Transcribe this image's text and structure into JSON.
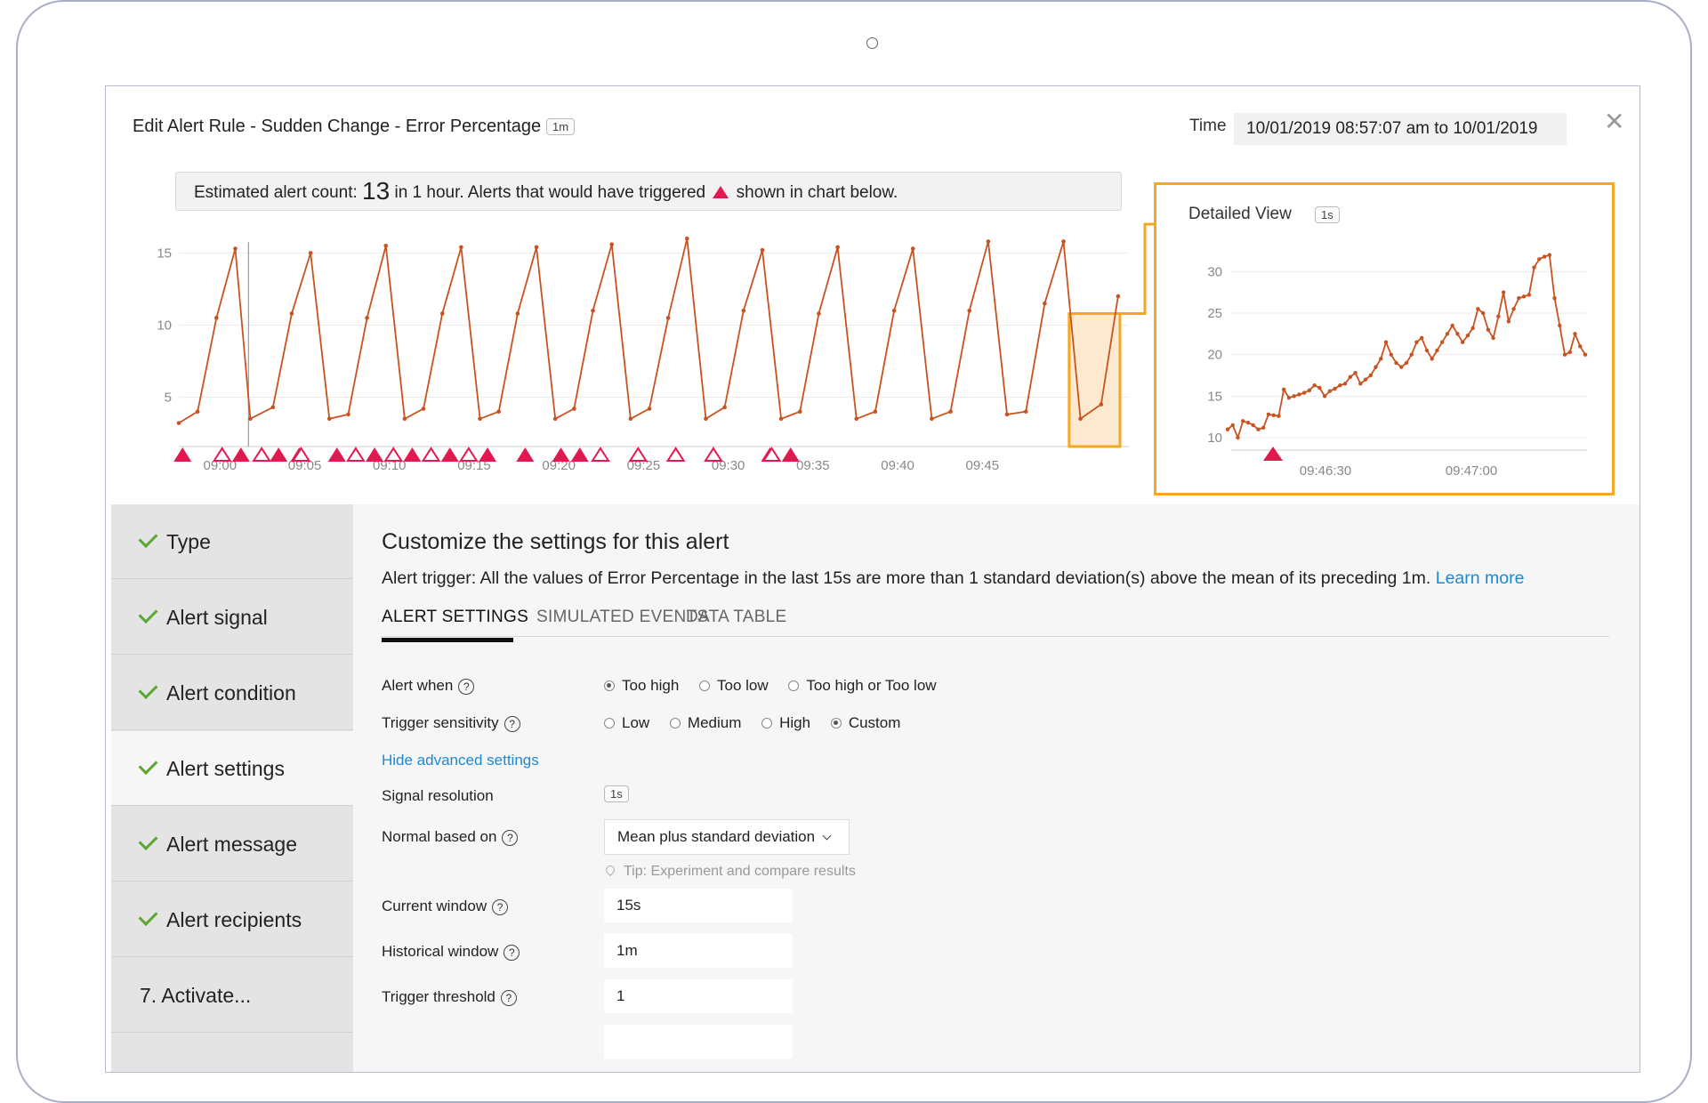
{
  "header": {
    "title": "Edit Alert Rule - Sudden Change - Error Percentage",
    "resolution_badge": "1m",
    "time_label": "Time",
    "time_value": "10/01/2019 08:57:07 am to 10/01/2019"
  },
  "estimate": {
    "prefix": "Estimated alert count:",
    "count": "13",
    "middle": "in 1 hour. Alerts that would have triggered",
    "suffix": "shown in chart below."
  },
  "colors": {
    "line": "#c8531f",
    "alert": "#e3184f",
    "highlight": "#f5a623",
    "link": "#1a8ad4",
    "check": "#5aa832"
  },
  "chart_data": [
    {
      "type": "line",
      "name": "main",
      "x_ticks": [
        "09:00",
        "09:05",
        "09:10",
        "09:15",
        "09:20",
        "09:25",
        "09:30",
        "09:35",
        "09:40",
        "09:45"
      ],
      "y_ticks": [
        5,
        10,
        15
      ],
      "ylim": [
        2.5,
        17
      ],
      "x_range": [
        58.5,
        107
      ],
      "series": [
        {
          "values": [
            [
              58.5,
              3.2
            ],
            [
              59.5,
              4
            ],
            [
              60.5,
              10.5
            ],
            [
              61.5,
              15.3
            ],
            [
              62.3,
              3.5
            ],
            [
              63.5,
              4.3
            ],
            [
              64.5,
              10.8
            ],
            [
              65.5,
              15
            ],
            [
              66.5,
              3.5
            ],
            [
              67.5,
              3.8
            ],
            [
              68.5,
              10.5
            ],
            [
              69.5,
              15.5
            ],
            [
              70.5,
              3.5
            ],
            [
              71.5,
              4.2
            ],
            [
              72.5,
              10.8
            ],
            [
              73.5,
              15.4
            ],
            [
              74.5,
              3.5
            ],
            [
              75.5,
              4
            ],
            [
              76.5,
              10.8
            ],
            [
              77.5,
              15.4
            ],
            [
              78.5,
              3.5
            ],
            [
              79.5,
              4.2
            ],
            [
              80.5,
              11
            ],
            [
              81.5,
              15.6
            ],
            [
              82.5,
              3.5
            ],
            [
              83.5,
              4.2
            ],
            [
              84.5,
              10.5
            ],
            [
              85.5,
              16
            ],
            [
              86.5,
              3.5
            ],
            [
              87.5,
              4.3
            ],
            [
              88.5,
              11
            ],
            [
              89.5,
              15.2
            ],
            [
              90.5,
              3.5
            ],
            [
              91.5,
              4
            ],
            [
              92.5,
              10.8
            ],
            [
              93.5,
              15.4
            ],
            [
              94.5,
              3.5
            ],
            [
              95.5,
              4
            ],
            [
              96.5,
              11
            ],
            [
              97.5,
              15.3
            ],
            [
              98.5,
              3.5
            ],
            [
              99.5,
              4
            ],
            [
              100.5,
              11
            ],
            [
              101.5,
              15.8
            ],
            [
              102.5,
              3.8
            ],
            [
              103.5,
              4
            ],
            [
              104.5,
              11.5
            ],
            [
              105.5,
              15.8
            ],
            [
              106.4,
              3.5
            ],
            [
              107.5,
              4.5
            ],
            [
              108.4,
              12
            ]
          ]
        }
      ],
      "cursor_x": 62.2,
      "zoom_range": [
        105.8,
        108.5
      ],
      "alerts_triggered": [
        58.7,
        61.8,
        63.8,
        64.9,
        66.9,
        68.9,
        70.9,
        72.9,
        74.9,
        76.9,
        78.8,
        79.8,
        80.9,
        84.9,
        86.9,
        89.9,
        91.0
      ],
      "alerts_outline": [
        60.8,
        62.9,
        65.0,
        67.9,
        69.9,
        71.9,
        73.9,
        80.9,
        82.9,
        84.9,
        86.9,
        90.0
      ]
    },
    {
      "type": "line",
      "name": "Detailed View",
      "resolution_badge": "1s",
      "x_ticks": [
        "09:46:30",
        "09:47:00"
      ],
      "y_ticks": [
        10,
        15,
        20,
        25,
        30
      ],
      "ylim": [
        8.5,
        31
      ],
      "values": [
        11,
        11.5,
        10,
        12,
        11.8,
        11.5,
        11,
        11.2,
        12.8,
        12.7,
        12.6,
        15.8,
        14.8,
        15,
        15.2,
        15.4,
        15.7,
        16.3,
        16,
        15,
        15.6,
        15.9,
        16.3,
        16.5,
        17.3,
        17.8,
        16.5,
        17,
        17.5,
        18.5,
        19.5,
        21.5,
        20,
        19,
        18.5,
        19,
        20,
        21.5,
        22,
        20.5,
        19.5,
        20.5,
        21.5,
        22.5,
        23.5,
        22.5,
        21.5,
        22.3,
        23.2,
        25.5,
        25,
        23,
        22,
        24.6,
        27.5,
        24,
        25.5,
        26.8,
        27,
        27.2,
        30.5,
        31.5,
        31.8,
        32,
        26.8,
        23.5,
        20,
        20.3,
        22.5,
        21,
        20
      ]
    }
  ],
  "sidebar": {
    "items": [
      {
        "label": "Type"
      },
      {
        "label": "Alert signal"
      },
      {
        "label": "Alert condition"
      },
      {
        "label": "Alert settings"
      },
      {
        "label": "Alert message"
      },
      {
        "label": "Alert recipients"
      },
      {
        "num": "7.",
        "label": "Activate..."
      }
    ]
  },
  "content": {
    "heading": "Customize the settings for this alert",
    "trigger_text": "Alert trigger: All the values of Error Percentage in the last 15s are more than 1 standard deviation(s) above the mean of its preceding 1m.",
    "learn_more": "Learn more",
    "tabs": [
      "ALERT SETTINGS",
      "SIMULATED EVENTS",
      "DATA TABLE"
    ],
    "alert_when": {
      "label": "Alert when",
      "options": [
        "Too high",
        "Too low",
        "Too high or Too low"
      ],
      "selected": "Too high"
    },
    "sensitivity": {
      "label": "Trigger sensitivity",
      "options": [
        "Low",
        "Medium",
        "High",
        "Custom"
      ],
      "selected": "Custom"
    },
    "advanced_link": "Hide advanced settings",
    "signal_resolution": {
      "label": "Signal resolution",
      "value": "1s"
    },
    "normal_based_on": {
      "label": "Normal based on",
      "value": "Mean plus standard deviation"
    },
    "tip": "Tip: Experiment and compare results",
    "current_window": {
      "label": "Current window",
      "value": "15s"
    },
    "historical_window": {
      "label": "Historical window",
      "value": "1m"
    },
    "trigger_threshold": {
      "label": "Trigger threshold",
      "value": "1"
    }
  }
}
